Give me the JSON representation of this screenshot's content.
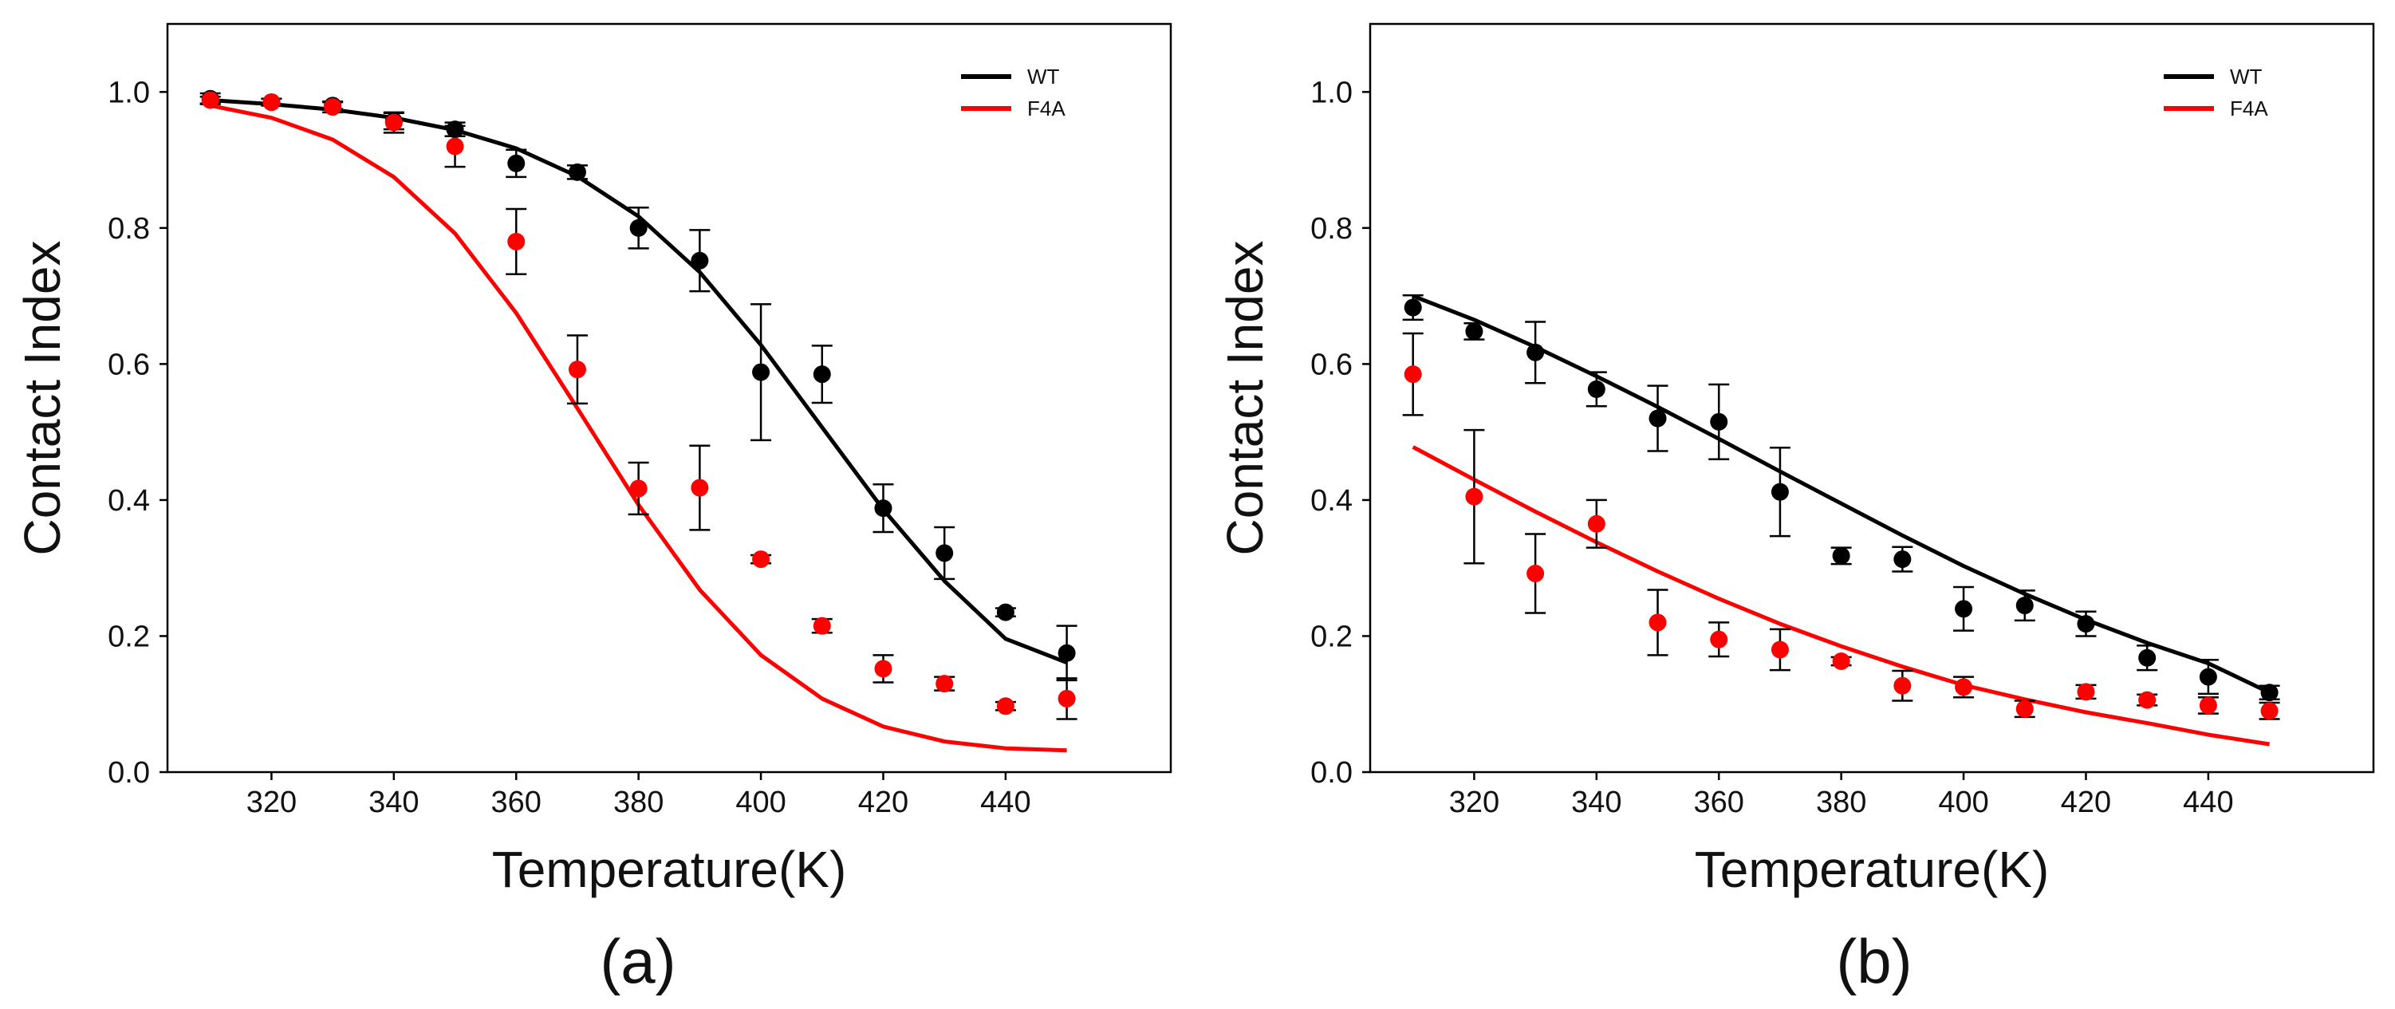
{
  "chart_data": [
    {
      "type": "scatter",
      "panel_label": "(a)",
      "xlabel": "Temperature(K)",
      "ylabel": "Contact Index",
      "xlim": [
        303,
        467
      ],
      "ylim": [
        0,
        1.1
      ],
      "xticks": [
        "320",
        "340",
        "360",
        "380",
        "400",
        "420",
        "440"
      ],
      "yticks": [
        "0.0",
        "0.2",
        "0.4",
        "0.6",
        "0.8",
        "1.0"
      ],
      "legend": {
        "placement": "top-right",
        "entries": [
          "WT",
          "F4A"
        ]
      },
      "series": [
        {
          "name": "WT",
          "color": "#000000",
          "x": [
            310,
            320,
            330,
            340,
            350,
            360,
            370,
            380,
            390,
            400,
            410,
            420,
            430,
            440,
            450
          ],
          "y": [
            0.99,
            0.985,
            0.98,
            0.957,
            0.945,
            0.895,
            0.882,
            0.8,
            0.752,
            0.588,
            0.585,
            0.388,
            0.322,
            0.235,
            0.175
          ],
          "err": [
            0.008,
            0.005,
            0.005,
            0.012,
            0.01,
            0.02,
            0.01,
            0.03,
            0.045,
            0.1,
            0.042,
            0.035,
            0.038,
            0.006,
            0.04
          ],
          "fit": [
            0.988,
            0.982,
            0.974,
            0.962,
            0.944,
            0.917,
            0.876,
            0.817,
            0.735,
            0.628,
            0.507,
            0.386,
            0.281,
            0.196,
            0.161
          ]
        },
        {
          "name": "F4A",
          "color": "#ff0000",
          "x": [
            310,
            320,
            330,
            340,
            350,
            360,
            370,
            380,
            390,
            400,
            410,
            420,
            430,
            440,
            450
          ],
          "y": [
            0.988,
            0.985,
            0.978,
            0.955,
            0.92,
            0.78,
            0.592,
            0.417,
            0.418,
            0.313,
            0.215,
            0.152,
            0.13,
            0.097,
            0.108
          ],
          "err": [
            0.005,
            0.005,
            0.008,
            0.015,
            0.03,
            0.048,
            0.05,
            0.038,
            0.062,
            0.006,
            0.01,
            0.02,
            0.01,
            0.006,
            0.03
          ],
          "fit": [
            0.98,
            0.962,
            0.93,
            0.875,
            0.792,
            0.675,
            0.535,
            0.393,
            0.268,
            0.172,
            0.108,
            0.067,
            0.045,
            0.035,
            0.032
          ]
        }
      ]
    },
    {
      "type": "scatter",
      "panel_label": "(b)",
      "xlabel": "Temperature(K)",
      "ylabel": "Contact Index",
      "xlim": [
        303,
        467
      ],
      "ylim": [
        0,
        1.1
      ],
      "xticks": [
        "320",
        "340",
        "360",
        "380",
        "400",
        "420",
        "440"
      ],
      "yticks": [
        "0.0",
        "0.2",
        "0.4",
        "0.6",
        "0.8",
        "1.0"
      ],
      "legend": {
        "placement": "top-right",
        "entries": [
          "WT",
          "F4A"
        ]
      },
      "series": [
        {
          "name": "WT",
          "color": "#000000",
          "x": [
            310,
            320,
            330,
            340,
            350,
            360,
            370,
            380,
            390,
            400,
            410,
            420,
            430,
            440,
            450
          ],
          "y": [
            0.683,
            0.648,
            0.617,
            0.563,
            0.52,
            0.515,
            0.412,
            0.318,
            0.313,
            0.24,
            0.245,
            0.218,
            0.168,
            0.14,
            0.117
          ],
          "err": [
            0.018,
            0.012,
            0.045,
            0.025,
            0.048,
            0.055,
            0.065,
            0.012,
            0.018,
            0.032,
            0.022,
            0.018,
            0.018,
            0.025,
            0.01
          ],
          "fit": [
            0.7,
            0.665,
            0.625,
            0.582,
            0.537,
            0.49,
            0.442,
            0.395,
            0.348,
            0.303,
            0.262,
            0.224,
            0.19,
            0.16,
            0.117
          ]
        },
        {
          "name": "F4A",
          "color": "#ff0000",
          "x": [
            310,
            320,
            330,
            340,
            350,
            360,
            370,
            380,
            390,
            400,
            410,
            420,
            430,
            440,
            450
          ],
          "y": [
            0.585,
            0.405,
            0.292,
            0.365,
            0.22,
            0.195,
            0.18,
            0.163,
            0.127,
            0.125,
            0.093,
            0.118,
            0.106,
            0.098,
            0.09
          ],
          "err": [
            0.06,
            0.098,
            0.058,
            0.035,
            0.048,
            0.025,
            0.03,
            0.006,
            0.022,
            0.015,
            0.012,
            0.01,
            0.008,
            0.012,
            0.012
          ],
          "fit": [
            0.478,
            0.43,
            0.383,
            0.338,
            0.295,
            0.255,
            0.218,
            0.185,
            0.155,
            0.128,
            0.107,
            0.088,
            0.072,
            0.055,
            0.041
          ]
        }
      ]
    }
  ]
}
